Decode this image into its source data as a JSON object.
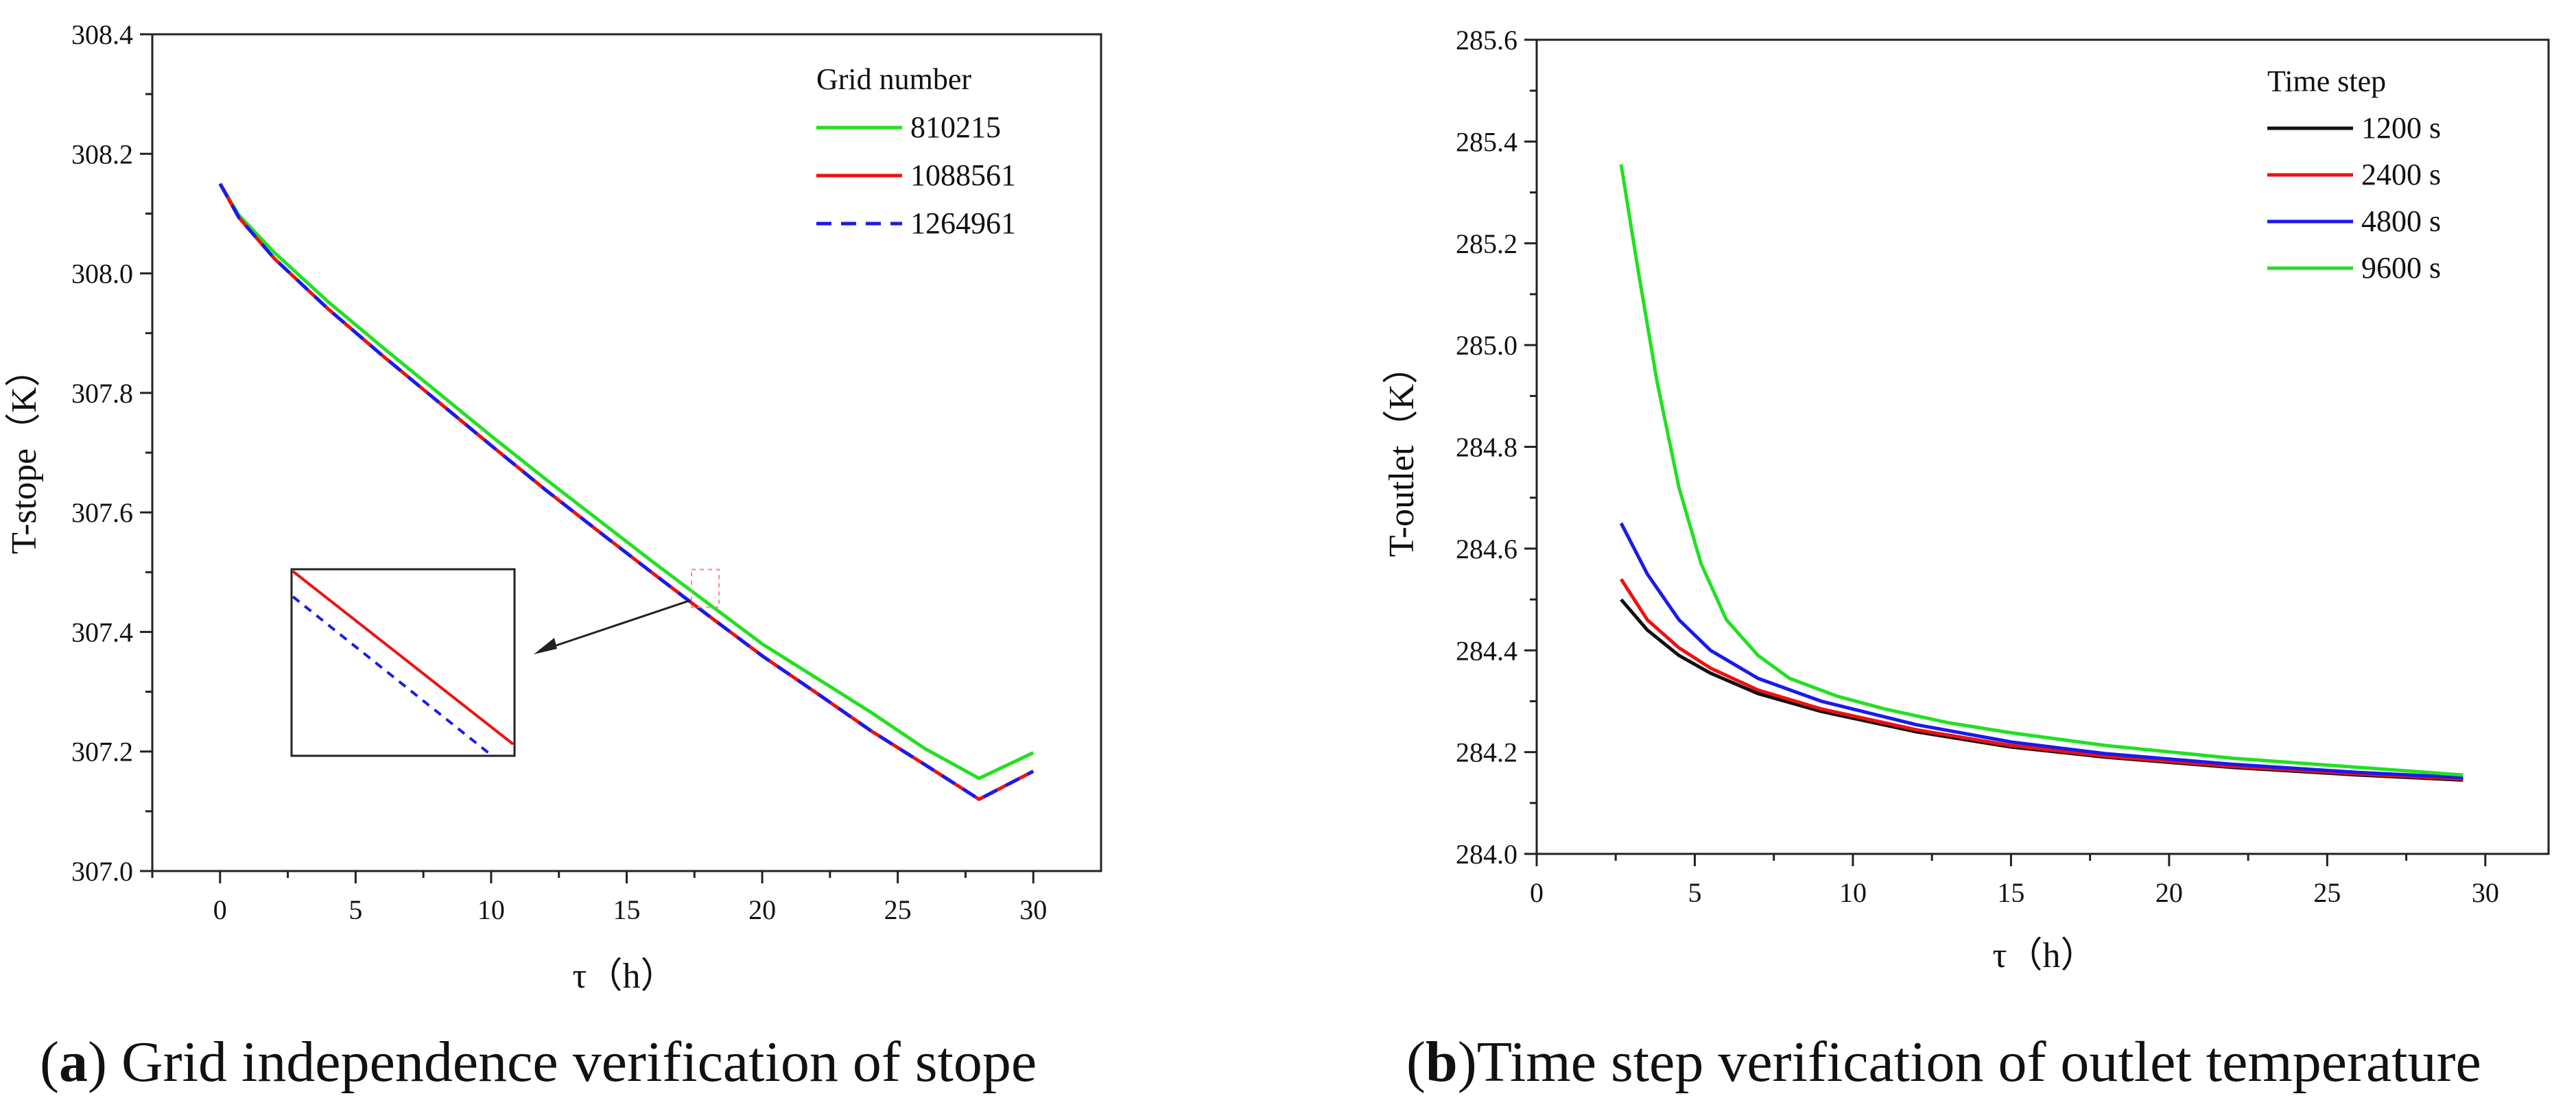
{
  "chart_data": [
    {
      "id": "a",
      "type": "line",
      "xlabel": "τ（h）",
      "ylabel": "T-stope（K）",
      "xlim": [
        -2.5,
        32.5
      ],
      "ylim": [
        307.0,
        308.4
      ],
      "xticks": [
        0,
        5,
        10,
        15,
        20,
        25,
        30
      ],
      "yticks": [
        307.0,
        307.2,
        307.4,
        307.6,
        307.8,
        308.0,
        308.2,
        308.4
      ],
      "legend_title": "Grid number",
      "legend_position": "top-right",
      "series": [
        {
          "name": "810215",
          "color": "#22e022",
          "dash": "solid",
          "x": [
            0,
            0.7,
            2,
            4,
            6,
            8,
            10,
            12,
            14,
            16,
            18,
            20,
            22,
            24,
            26,
            28,
            30
          ],
          "y": [
            308.15,
            308.097,
            308.035,
            307.952,
            307.876,
            307.802,
            307.728,
            307.656,
            307.586,
            307.516,
            307.448,
            307.38,
            307.323,
            307.266,
            307.205,
            307.155,
            307.198
          ]
        },
        {
          "name": "1088561",
          "color": "#ee1111",
          "dash": "solid",
          "x": [
            0,
            0.7,
            2,
            4,
            6,
            8,
            10,
            12,
            14,
            16,
            18,
            20,
            22,
            24,
            26,
            28,
            30
          ],
          "y": [
            308.15,
            308.093,
            308.025,
            307.94,
            307.862,
            307.787,
            307.712,
            307.638,
            307.567,
            307.497,
            307.428,
            307.36,
            307.298,
            307.235,
            307.178,
            307.12,
            307.167
          ]
        },
        {
          "name": "1264961",
          "color": "#1a1aee",
          "dash": "dashed",
          "x": [
            0,
            0.7,
            2,
            4,
            6,
            8,
            10,
            12,
            14,
            16,
            18,
            20,
            22,
            24,
            26,
            28,
            30
          ],
          "y": [
            308.15,
            308.093,
            308.025,
            307.94,
            307.862,
            307.787,
            307.712,
            307.638,
            307.567,
            307.497,
            307.428,
            307.36,
            307.298,
            307.235,
            307.178,
            307.12,
            307.167
          ]
        }
      ],
      "annotation": "zoom inset near τ≈18 h, T≈307.47 K, arrow pointing left to inset box"
    },
    {
      "id": "b",
      "type": "line",
      "xlabel": "τ（h）",
      "ylabel": "T-outlet（K）",
      "xlim": [
        0,
        32
      ],
      "ylim": [
        284.0,
        285.6
      ],
      "xticks": [
        0,
        5,
        10,
        15,
        20,
        25,
        30
      ],
      "yticks": [
        284.0,
        284.2,
        284.4,
        284.6,
        284.8,
        285.0,
        285.2,
        285.4,
        285.6
      ],
      "legend_title": "Time step",
      "legend_position": "top-right",
      "series": [
        {
          "name": "1200 s",
          "color": "#111111",
          "dash": "solid",
          "x": [
            2.67,
            3.5,
            4.5,
            5.5,
            7,
            9,
            12,
            15,
            18,
            22,
            26,
            29.3
          ],
          "y": [
            284.5,
            284.44,
            284.39,
            284.355,
            284.315,
            284.28,
            284.24,
            284.21,
            284.19,
            284.17,
            284.155,
            284.145
          ]
        },
        {
          "name": "2400 s",
          "color": "#ee1111",
          "dash": "solid",
          "x": [
            2.67,
            3.5,
            4.5,
            5.5,
            7,
            9,
            12,
            15,
            18,
            22,
            26,
            29.3
          ],
          "y": [
            284.54,
            284.46,
            284.405,
            284.365,
            284.322,
            284.285,
            284.244,
            284.213,
            284.192,
            284.172,
            284.157,
            284.147
          ]
        },
        {
          "name": "4800 s",
          "color": "#1a1aee",
          "dash": "solid",
          "x": [
            2.67,
            3.5,
            4.5,
            5.5,
            7,
            9,
            12,
            15,
            18,
            22,
            26,
            29.3
          ],
          "y": [
            284.65,
            284.55,
            284.46,
            284.4,
            284.345,
            284.3,
            284.254,
            284.22,
            284.197,
            284.176,
            284.16,
            284.15
          ]
        },
        {
          "name": "9600 s",
          "color": "#22e022",
          "dash": "solid",
          "x": [
            2.67,
            3.2,
            3.8,
            4.5,
            5.2,
            6,
            7,
            8,
            9.5,
            11,
            13,
            15,
            18,
            22,
            26,
            29.3
          ],
          "y": [
            285.355,
            285.15,
            284.93,
            284.72,
            284.57,
            284.46,
            284.39,
            284.345,
            284.31,
            284.285,
            284.258,
            284.238,
            284.213,
            284.188,
            284.17,
            284.155
          ]
        }
      ]
    }
  ],
  "captions": {
    "a": {
      "label": "a",
      "text": " Grid independence verification of stope"
    },
    "b": {
      "label": "b",
      "text": "Time step verification of outlet temperature"
    }
  }
}
